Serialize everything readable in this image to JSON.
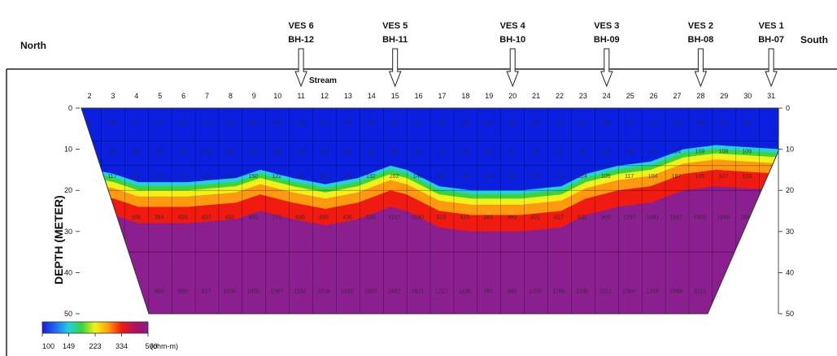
{
  "labels": {
    "north": "North",
    "south": "South",
    "stream": "Stream",
    "depth_axis": "DEPTH (METER)"
  },
  "stations": [
    {
      "ves": "VES 6",
      "bh": "BH-12",
      "col": 11
    },
    {
      "ves": "VES 5",
      "bh": "BH-11",
      "col": 15
    },
    {
      "ves": "VES 4",
      "bh": "BH-10",
      "col": 20
    },
    {
      "ves": "VES 3",
      "bh": "BH-09",
      "col": 24
    },
    {
      "ves": "VES 2",
      "bh": "BH-08",
      "col": 28
    },
    {
      "ves": "VES 1",
      "bh": "BH-07",
      "col": 31
    }
  ],
  "columns": [
    "2",
    "3",
    "4",
    "5",
    "6",
    "7",
    "8",
    "9",
    "10",
    "11",
    "12",
    "13",
    "14",
    "15",
    "16",
    "17",
    "18",
    "19",
    "20",
    "21",
    "22",
    "23",
    "24",
    "25",
    "26",
    "27",
    "28",
    "29",
    "30",
    "31"
  ],
  "depth_ticks": [
    "0",
    "10",
    "20",
    "30",
    "40",
    "50"
  ],
  "colorbar": {
    "ticks": [
      "100",
      "149",
      "223",
      "334",
      "500"
    ],
    "unit": "(ohm-m)",
    "colors": [
      "#1a1ad8",
      "#1f6cf0",
      "#22d0e0",
      "#3cd43c",
      "#f2f21a",
      "#ff9a10",
      "#f01a10",
      "#b01060",
      "#8a1c8a"
    ]
  },
  "layer_colors": {
    "top": "#0a1fe0",
    "bottom": "#8b1f8f"
  },
  "cell_values": {
    "row_a": [
      "107",
      "123",
      "117",
      "124",
      "102",
      "119",
      "131",
      "120",
      "122",
      "133",
      "113",
      "119",
      "116",
      "121",
      "117",
      "116",
      "118",
      "126",
      "121",
      "129",
      "137",
      "117",
      "129",
      "122",
      "121",
      "118",
      "109",
      "114",
      "118"
    ],
    "row_b": [
      "100",
      "115",
      "108",
      "113",
      "112",
      "108",
      "113",
      "114",
      "115",
      "103",
      "108",
      "101",
      "122",
      "105",
      "112",
      "113",
      "105",
      "113",
      "111",
      "123",
      "129",
      "112",
      "110",
      "109",
      "118",
      "114",
      "109",
      "108",
      "109"
    ],
    "row_c": [
      "373",
      "117",
      "118",
      "120",
      "112",
      "119",
      "121",
      "150",
      "122",
      "115",
      "105",
      "115",
      "132",
      "262",
      "140",
      "106",
      "119",
      "119",
      "144",
      "140",
      "128",
      "124",
      "105",
      "117",
      "104",
      "187",
      "105",
      "107",
      "123"
    ],
    "row_d": [
      "189",
      "384",
      "420",
      "437",
      "432",
      "900",
      "771",
      "635",
      "495",
      "436",
      "534",
      "1107",
      "1180",
      "523",
      "415",
      "383",
      "360",
      "401",
      "417",
      "532",
      "900",
      "1297",
      "1681",
      "1607",
      "1906",
      "1848",
      "2043"
    ],
    "row_e": [
      "800",
      "900",
      "977",
      "1030",
      "1005",
      "1367",
      "1152",
      "1016",
      "1182",
      "1520",
      "1602",
      "1971",
      "1227",
      "1126",
      "782",
      "960",
      "1370",
      "1780",
      "1100",
      "2211",
      "2300",
      "1315",
      "2860",
      "3113",
      "5000"
    ]
  }
}
